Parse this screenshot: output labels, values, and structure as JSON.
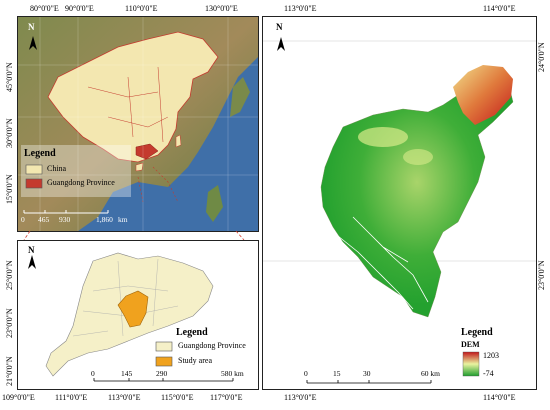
{
  "panel_a": {
    "top_ticks": [
      "80°0'0\"E",
      "90°0'0\"E",
      "110°0'0\"E",
      "130°0'0\"E"
    ],
    "left_ticks": [
      "45°0'0\"N",
      "30°0'0\"N",
      "15°0'0\"N"
    ],
    "north": "N",
    "legend_title": "Legend",
    "legend_items": [
      "China",
      "Guangdong Province"
    ],
    "scale_labels": [
      "0",
      "465",
      "930",
      "1,860",
      "km"
    ]
  },
  "panel_b": {
    "bottom_ticks": [
      "109°0'0\"E",
      "111°0'0\"E",
      "113°0'0\"E",
      "115°0'0\"E",
      "117°0'0\"E"
    ],
    "left_ticks": [
      "25°0'0\"N",
      "23°0'0\"N",
      "21°0'0\"N"
    ],
    "north": "N",
    "legend_title": "Legend",
    "legend_items": [
      "Guangdong Province",
      "Study area"
    ],
    "scale_labels": [
      "0",
      "145",
      "290",
      "580 km"
    ]
  },
  "panel_c": {
    "top_ticks": [
      "113°0'0\"E",
      "114°0'0\"E"
    ],
    "bottom_ticks": [
      "113°0'0\"E",
      "114°0'0\"E"
    ],
    "right_ticks": [
      "24°0'0\"N",
      "23°0'0\"N"
    ],
    "north": "N",
    "legend_title": "Legend",
    "legend_subtitle": "DEM",
    "dem_max": "1203",
    "dem_min": "-74",
    "scale_labels": [
      "0",
      "15",
      "30",
      "60 km"
    ]
  },
  "colors": {
    "sea": "#3f6fa8",
    "china_fill": "#f3e7b0",
    "guangdong_fill": "#f5f0c8",
    "study_area": "#f0a21e",
    "dem_high": "#c2171b",
    "dem_mid": "#e9f3a0",
    "dem_low": "#1f9d2e",
    "leader_line": "#d23a2a"
  }
}
